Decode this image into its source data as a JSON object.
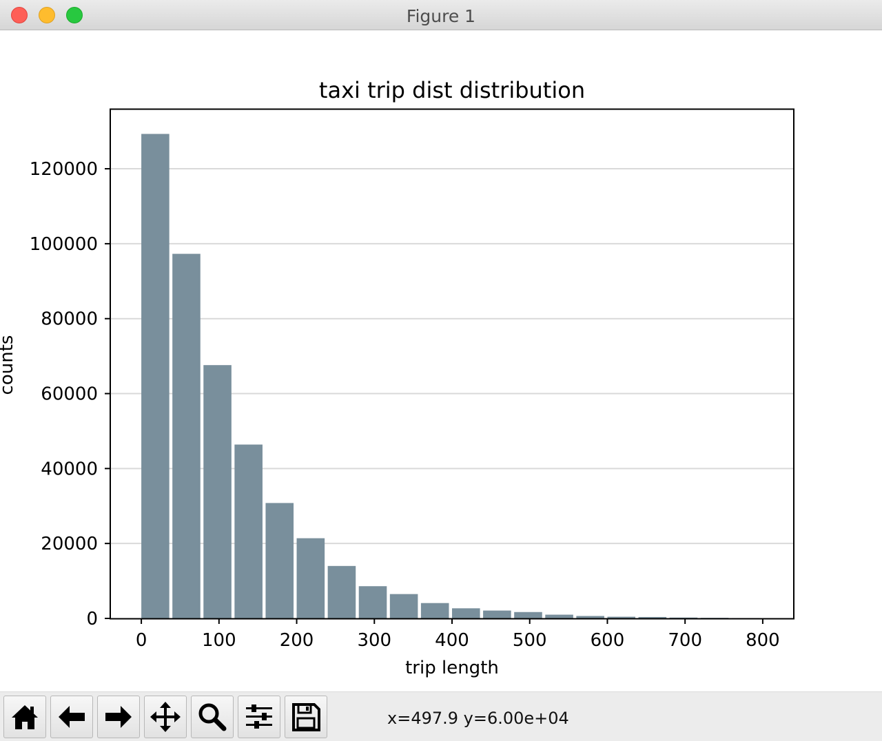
{
  "window": {
    "title": "Figure 1"
  },
  "toolbar": {
    "buttons": [
      {
        "name": "home-button",
        "icon": "home-icon"
      },
      {
        "name": "back-button",
        "icon": "arrow-left-icon"
      },
      {
        "name": "forward-button",
        "icon": "arrow-right-icon"
      },
      {
        "name": "pan-button",
        "icon": "move-icon"
      },
      {
        "name": "zoom-button",
        "icon": "magnifier-icon"
      },
      {
        "name": "configure-subplots-button",
        "icon": "sliders-icon"
      },
      {
        "name": "save-button",
        "icon": "floppy-disk-icon"
      }
    ],
    "coordinates": "x=497.9 y=6.00e+04"
  },
  "chart_data": {
    "type": "bar",
    "title": "taxi trip dist distribution",
    "xlabel": "trip length",
    "ylabel": "counts",
    "bar_color": "#798f9c",
    "bin_width": 40,
    "bar_width": 36,
    "bins": [
      0,
      40,
      80,
      120,
      160,
      200,
      240,
      280,
      320,
      360,
      400,
      440,
      480,
      520,
      560,
      600,
      640,
      680,
      720,
      760
    ],
    "values": [
      129300,
      97300,
      67600,
      46400,
      30800,
      21400,
      14000,
      8600,
      6500,
      4100,
      2700,
      2100,
      1700,
      1000,
      650,
      450,
      380,
      230,
      160,
      100
    ],
    "xlim": [
      -40,
      840
    ],
    "ylim": [
      0,
      136000
    ],
    "xticks": [
      0,
      100,
      200,
      300,
      400,
      500,
      600,
      700,
      800
    ],
    "yticks": [
      0,
      20000,
      40000,
      60000,
      80000,
      100000,
      120000
    ],
    "grid": "horizontal"
  }
}
